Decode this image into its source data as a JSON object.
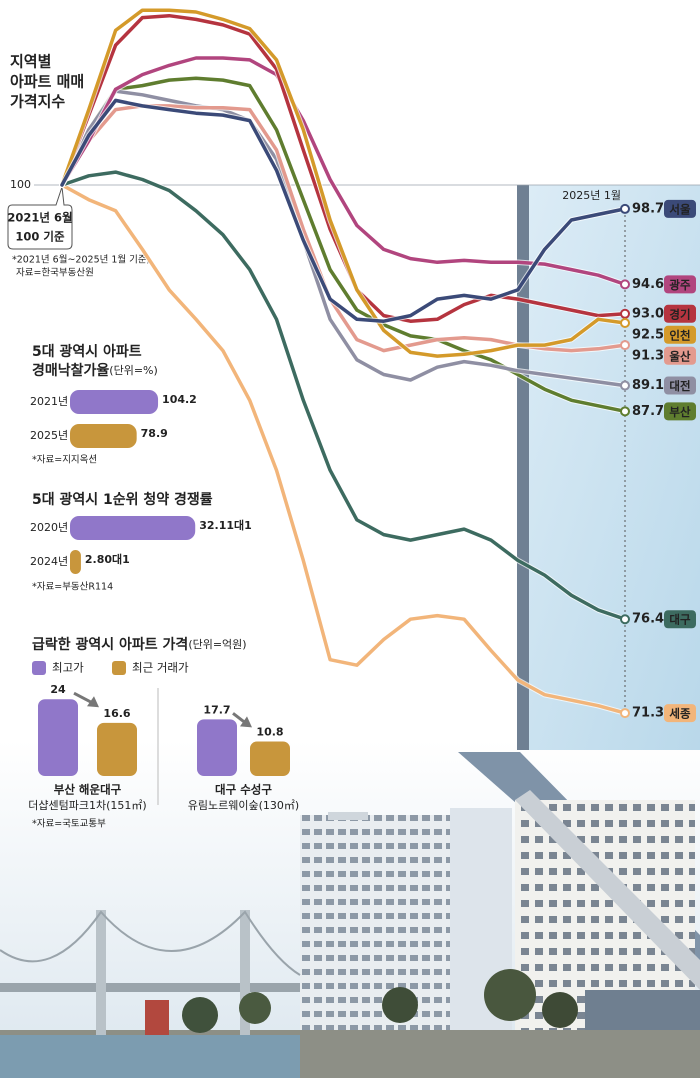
{
  "chart_data": [
    {
      "type": "line",
      "title": [
        "지역별",
        "아파트 매매",
        "가격지수"
      ],
      "base_note": [
        "2021년 6월",
        "100 기준"
      ],
      "source": [
        "*2021년 6월~2025년 1월 기준,",
        "자료=한국부동산원"
      ],
      "categories": [
        null,
        null,
        null,
        null,
        null,
        null,
        null,
        null,
        null,
        null,
        null,
        null,
        null,
        null,
        null,
        null,
        null,
        null,
        null,
        null,
        null,
        "2025년 1월"
      ],
      "ylim": [
        70,
        110
      ],
      "yticks": [
        100
      ],
      "grid": true,
      "series": [
        {
          "name": "세종",
          "color": "#f2b57a",
          "values": [
            100,
            99.2,
            98.6,
            96.5,
            94.3,
            92.7,
            91.0,
            88.3,
            84.5,
            79.6,
            74.2,
            73.9,
            75.3,
            76.4,
            76.6,
            76.4,
            74.7,
            73.1,
            72.3,
            72.0,
            71.7,
            71.3
          ],
          "value_labels": [
            null,
            null,
            null,
            null,
            null,
            null,
            null,
            null,
            null,
            null,
            null,
            null,
            null,
            null,
            null,
            null,
            null,
            null,
            null,
            null,
            null,
            "71.3"
          ]
        },
        {
          "name": "대구",
          "color": "#3d6b60",
          "values": [
            100,
            100.5,
            100.7,
            100.3,
            99.7,
            98.6,
            97.3,
            95.4,
            92.7,
            88.3,
            84.5,
            81.8,
            81.0,
            80.7,
            81.0,
            81.3,
            80.7,
            79.6,
            78.8,
            77.7,
            76.9,
            76.4
          ],
          "value_labels": [
            null,
            null,
            null,
            null,
            null,
            null,
            null,
            null,
            null,
            null,
            null,
            null,
            null,
            null,
            null,
            null,
            null,
            null,
            null,
            null,
            null,
            "76.4"
          ]
        },
        {
          "name": "부산",
          "color": "#5f7d2f",
          "values": [
            100,
            103.0,
            105.2,
            105.4,
            105.7,
            105.8,
            105.7,
            105.4,
            103.0,
            99.2,
            95.4,
            93.2,
            92.4,
            91.8,
            91.6,
            91.0,
            90.5,
            89.7,
            88.9,
            88.3,
            88.0,
            87.7
          ],
          "value_labels": [
            null,
            null,
            null,
            null,
            null,
            null,
            null,
            null,
            null,
            null,
            null,
            null,
            null,
            null,
            null,
            null,
            null,
            null,
            null,
            null,
            null,
            "87.7"
          ]
        },
        {
          "name": "대전",
          "color": "#8f8fa3",
          "values": [
            100,
            103.0,
            105.1,
            104.9,
            104.6,
            104.3,
            104.1,
            103.5,
            101.4,
            97.0,
            92.7,
            90.5,
            89.7,
            89.4,
            90.1,
            90.4,
            90.2,
            89.9,
            89.7,
            89.5,
            89.3,
            89.1
          ],
          "value_labels": [
            null,
            null,
            null,
            null,
            null,
            null,
            null,
            null,
            null,
            null,
            null,
            null,
            null,
            null,
            null,
            null,
            null,
            null,
            null,
            null,
            null,
            "89.1"
          ]
        },
        {
          "name": "울산",
          "color": "#e39a8e",
          "values": [
            100,
            102.4,
            104.1,
            104.3,
            104.3,
            104.2,
            104.2,
            104.1,
            101.9,
            97.6,
            93.8,
            91.6,
            91.0,
            91.3,
            91.6,
            91.7,
            91.6,
            91.3,
            91.1,
            91.0,
            91.1,
            91.3
          ],
          "value_labels": [
            null,
            null,
            null,
            null,
            null,
            null,
            null,
            null,
            null,
            null,
            null,
            null,
            null,
            null,
            null,
            null,
            null,
            null,
            null,
            null,
            null,
            "91.3"
          ]
        },
        {
          "name": "광주",
          "color": "#b1457e",
          "values": [
            100,
            102.4,
            105.2,
            106.0,
            106.5,
            106.9,
            106.9,
            106.8,
            106.0,
            103.5,
            100.3,
            97.8,
            96.5,
            96.0,
            95.8,
            95.9,
            95.8,
            95.8,
            95.7,
            95.4,
            95.1,
            94.6
          ],
          "value_labels": [
            null,
            null,
            null,
            null,
            null,
            null,
            null,
            null,
            null,
            null,
            null,
            null,
            null,
            null,
            null,
            null,
            null,
            null,
            null,
            null,
            null,
            "94.6"
          ]
        },
        {
          "name": "경기",
          "color": "#b5343f",
          "values": [
            100,
            103.8,
            107.6,
            109.1,
            109.2,
            109.0,
            108.7,
            108.2,
            106.3,
            101.9,
            97.6,
            94.3,
            92.9,
            92.6,
            92.7,
            93.5,
            94.0,
            93.8,
            93.5,
            93.2,
            92.9,
            93.0
          ],
          "value_labels": [
            null,
            null,
            null,
            null,
            null,
            null,
            null,
            null,
            null,
            null,
            null,
            null,
            null,
            null,
            null,
            null,
            null,
            null,
            null,
            null,
            null,
            "93.0"
          ]
        },
        {
          "name": "인천",
          "color": "#d49a2a",
          "values": [
            100,
            104.1,
            108.4,
            109.5,
            109.5,
            109.4,
            109.0,
            108.5,
            106.8,
            103.0,
            98.1,
            94.3,
            92.1,
            90.9,
            90.7,
            90.8,
            91.0,
            91.3,
            91.3,
            91.6,
            92.7,
            92.5
          ],
          "value_labels": [
            null,
            null,
            null,
            null,
            null,
            null,
            null,
            null,
            null,
            null,
            null,
            null,
            null,
            null,
            null,
            null,
            null,
            null,
            null,
            null,
            null,
            "92.5"
          ]
        },
        {
          "name": "서울",
          "color": "#3b4a78",
          "values": [
            100,
            102.7,
            104.6,
            104.3,
            104.1,
            103.9,
            103.8,
            103.5,
            100.8,
            97.0,
            93.8,
            92.7,
            92.6,
            92.9,
            93.8,
            94.0,
            93.8,
            94.3,
            96.5,
            98.1,
            98.4,
            98.7
          ],
          "value_labels": [
            null,
            null,
            null,
            null,
            null,
            null,
            null,
            null,
            null,
            null,
            null,
            null,
            null,
            null,
            null,
            null,
            null,
            null,
            null,
            null,
            null,
            "98.7"
          ]
        }
      ]
    },
    {
      "type": "bar",
      "orientation": "horizontal",
      "title": [
        "5대 광역시 아파트",
        "경매낙찰가율"
      ],
      "unit": "(단위=%)",
      "categories": [
        "2021년",
        "2025년"
      ],
      "values": [
        104.2,
        78.9
      ],
      "colors": [
        "#9077c9",
        "#c8963c"
      ],
      "note": "*자료=지지옥션"
    },
    {
      "type": "bar",
      "orientation": "horizontal",
      "title": [
        "5대 광역시 1순위 청약 경쟁률"
      ],
      "categories": [
        "2020년",
        "2024년"
      ],
      "values": [
        32.11,
        2.8
      ],
      "value_labels": [
        "32.11대1",
        "2.80대1"
      ],
      "colors": [
        "#9077c9",
        "#c8963c"
      ],
      "note": "*자료=부동산R114"
    },
    {
      "type": "bar",
      "orientation": "vertical",
      "title": [
        "급락한 광역시 아파트 가격"
      ],
      "unit": "(단위=억원)",
      "categories": [
        [
          "부산 해운대구",
          "더샵센텀파크1차(151㎡)"
        ],
        [
          "대구 수성구",
          "유림노르웨이숲(130㎡)"
        ]
      ],
      "series": [
        {
          "name": "최고가",
          "color": "#9077c9",
          "values": [
            24,
            17.7
          ]
        },
        {
          "name": "최근 거래가",
          "color": "#c8963c",
          "values": [
            16.6,
            10.8
          ]
        }
      ],
      "note": "*자료=국토교통부"
    }
  ]
}
